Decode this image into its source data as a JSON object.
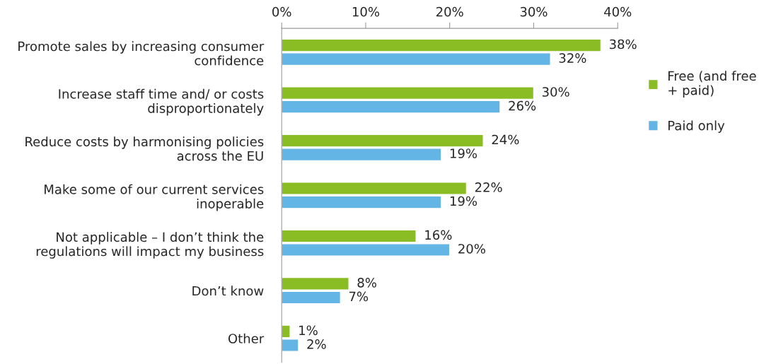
{
  "chart_data": {
    "type": "bar",
    "orientation": "horizontal",
    "categories": [
      "Promote sales by increasing consumer\nconfidence",
      "Increase staff time and/ or costs\ndisproportionately",
      "Reduce costs by harmonising policies\nacross the EU",
      "Make some of our current services\ninoperable",
      "Not applicable – I don’t think the\nregulations will impact my business",
      "Don’t know",
      "Other"
    ],
    "series": [
      {
        "name": "Free (and free\n+ paid)",
        "color": "#8abd24",
        "values": [
          38,
          30,
          24,
          22,
          16,
          8,
          1
        ],
        "value_labels": [
          "38%",
          "30%",
          "24%",
          "22%",
          "16%",
          "8%",
          "1%"
        ]
      },
      {
        "name": "Paid only",
        "color": "#63b5e5",
        "values": [
          32,
          26,
          19,
          19,
          20,
          7,
          2
        ],
        "value_labels": [
          "32%",
          "26%",
          "19%",
          "19%",
          "20%",
          "7%",
          "2%"
        ]
      }
    ],
    "xlim": [
      0,
      40
    ],
    "xticks": [
      {
        "value": 0,
        "label": "0%"
      },
      {
        "value": 10,
        "label": "10%"
      },
      {
        "value": 20,
        "label": "20%"
      },
      {
        "value": 30,
        "label": "30%"
      },
      {
        "value": 40,
        "label": "40%"
      }
    ],
    "legend": "right",
    "grid": false
  }
}
